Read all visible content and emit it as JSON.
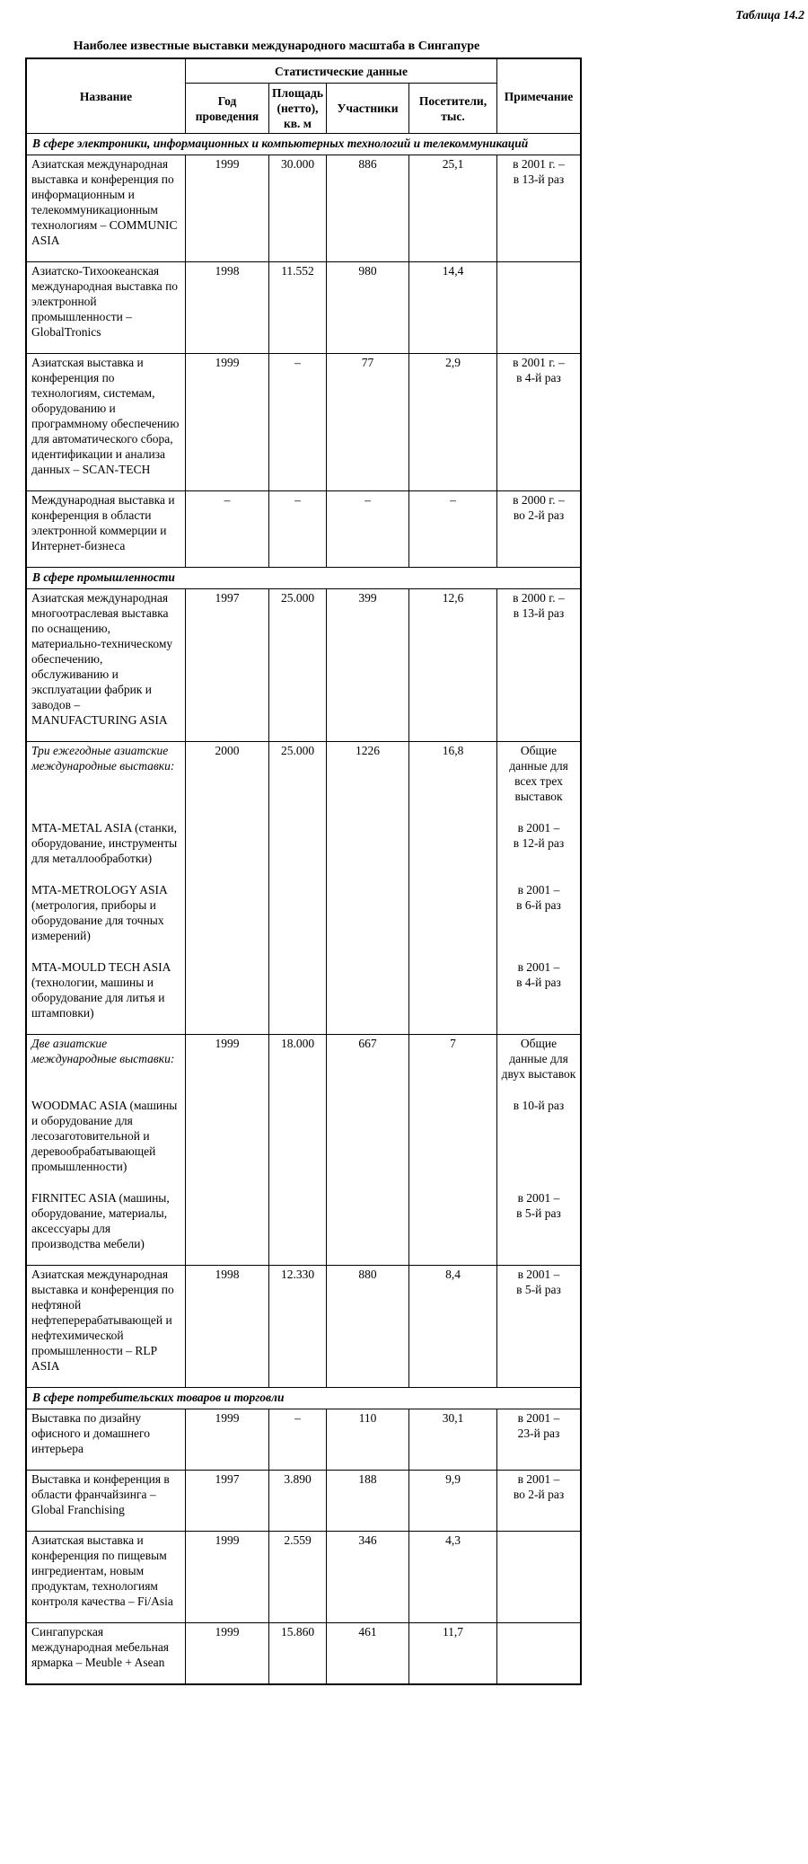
{
  "page": {
    "doc_label": "Таблица 14.2",
    "title": "Наиболее известные выставки международного масштаба в Сингапуре"
  },
  "table": {
    "header": {
      "name": "Название",
      "stats": "Статистические данные",
      "year": "Год проведения",
      "area": "Площадь (нетто), кв. м",
      "participants": "Участники",
      "visitors": "Посетители, тыс.",
      "note": "Примечание"
    },
    "rows": [
      {
        "type": "section",
        "text": "В сфере электроники, информационных и компьютерных технологий и телекоммуникаций"
      },
      {
        "type": "data",
        "year": "1999",
        "area": "30.000",
        "participants": "886",
        "visitors": "25,1",
        "parts": [
          {
            "name": "Азиатская международная выставка и конференция по информационным и телекоммуникационным технологиям – COMMUNIC ASIA",
            "note": "в 2001 г. –\nв 13-й раз"
          }
        ]
      },
      {
        "type": "data",
        "year": "1998",
        "area": "11.552",
        "participants": "980",
        "visitors": "14,4",
        "parts": [
          {
            "name": "Азиатско-Тихоокеанская международная выставка по электронной промышленности – GlobalTronics",
            "note": ""
          }
        ]
      },
      {
        "type": "data",
        "year": "1999",
        "area": "–",
        "participants": "77",
        "visitors": "2,9",
        "parts": [
          {
            "name": "Азиатская выставка и конференция по технологиям, системам, оборудованию и программному обеспечению для автоматического сбора, идентификации и анализа данных – SCAN-TECH",
            "note": "в 2001 г. –\nв 4-й раз"
          }
        ]
      },
      {
        "type": "data",
        "year": "–",
        "area": "–",
        "participants": "–",
        "visitors": "–",
        "parts": [
          {
            "name": "Международная выставка и конференция в области электронной коммерции и Интернет-бизнеса",
            "note": "в 2000 г. –\nво 2-й раз"
          }
        ]
      },
      {
        "type": "section",
        "text": "В сфере промышленности"
      },
      {
        "type": "data",
        "year": "1997",
        "area": "25.000",
        "participants": "399",
        "visitors": "12,6",
        "parts": [
          {
            "name": "Азиатская международная многоотраслевая выставка по оснащению, материально-техническому обеспечению, обслуживанию и эксплуатации фабрик и заводов – MANUFACTURING ASIA",
            "note": "в 2000 г. –\nв 13-й раз"
          }
        ]
      },
      {
        "type": "data",
        "year": "2000",
        "area": "25.000",
        "participants": "1226",
        "visitors": "16,8",
        "parts": [
          {
            "name": "Три ежегодные азиатские международные выставки:",
            "italic": true,
            "note": "Общие данные для всех трех выставок"
          },
          {
            "name": "MTA-METAL ASIA (станки, оборудование, инструменты для металлообработки)",
            "note": "в 2001 –\nв 12-й раз"
          },
          {
            "name": "MTA-METROLOGY ASIA (метрология, приборы и оборудование для точных измерений)",
            "note": "в 2001 –\nв 6-й раз"
          },
          {
            "name": "MTA-MOULD TECH ASIA (технологии, машины и оборудование для литья и штамповки)",
            "note": "в 2001 –\nв 4-й раз"
          }
        ]
      },
      {
        "type": "data",
        "year": "1999",
        "area": "18.000",
        "participants": "667",
        "visitors": "7",
        "parts": [
          {
            "name": "Две азиатские международные выставки:",
            "italic": true,
            "note": "Общие данные для двух выставок"
          },
          {
            "name": "WOODMAC ASIA (машины и оборудование для лесозаготовительной и деревообрабатывающей промышленности)",
            "note": "в 10-й раз"
          },
          {
            "name": "FIRNITEC ASIA (машины, оборудование, материалы, аксессуары для производства мебели)",
            "note": "в 2001 –\nв 5-й раз"
          }
        ]
      },
      {
        "type": "data",
        "year": "1998",
        "area": "12.330",
        "participants": "880",
        "visitors": "8,4",
        "parts": [
          {
            "name": "Азиатская международная выставка и конференция по нефтяной нефтеперерабатывающей и нефтехимической промышленности – RLP ASIA",
            "note": "в 2001 –\nв 5-й раз"
          }
        ]
      },
      {
        "type": "section",
        "text": "В сфере потребительских товаров и торговли"
      },
      {
        "type": "data",
        "year": "1999",
        "area": "–",
        "participants": "110",
        "visitors": "30,1",
        "parts": [
          {
            "name": "Выставка по дизайну офисного и домашнего интерьера",
            "note": "в 2001 –\n23-й раз"
          }
        ]
      },
      {
        "type": "data",
        "year": "1997",
        "area": "3.890",
        "participants": "188",
        "visitors": "9,9",
        "parts": [
          {
            "name": "Выставка и конференция в области франчайзинга – Global Franchising",
            "note": "в 2001 –\nво 2-й раз"
          }
        ]
      },
      {
        "type": "data",
        "year": "1999",
        "area": "2.559",
        "participants": "346",
        "visitors": "4,3",
        "parts": [
          {
            "name": "Азиатская выставка и конференция по пищевым ингредиентам, новым продуктам, технологиям контроля качества – Fi/Asia",
            "note": ""
          }
        ]
      },
      {
        "type": "data",
        "year": "1999",
        "area": "15.860",
        "participants": "461",
        "visitors": "11,7",
        "parts": [
          {
            "name": "Сингапурская международная мебельная ярмарка – Meuble + Asean",
            "note": ""
          }
        ]
      }
    ]
  }
}
